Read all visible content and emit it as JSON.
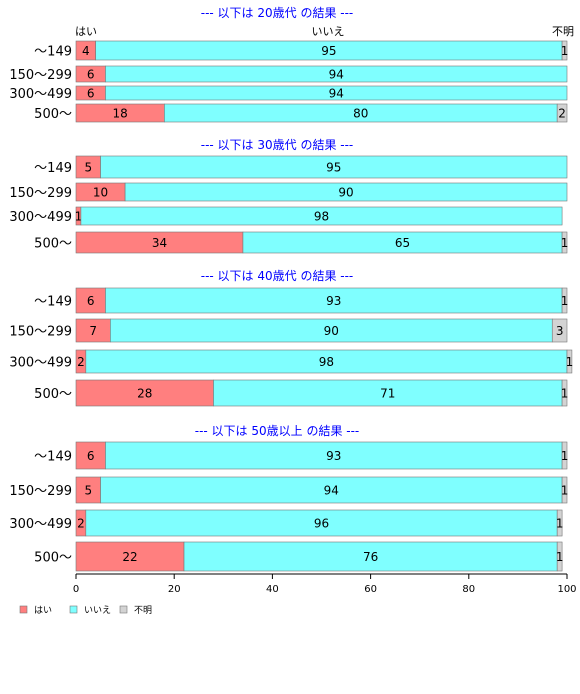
{
  "chart_data": {
    "type": "bar",
    "orientation": "horizontal",
    "stacked": true,
    "xlim": [
      0,
      100
    ],
    "xticks": [
      0,
      20,
      40,
      60,
      80,
      100
    ],
    "column_headers": [
      "はい",
      "いいえ",
      "不明"
    ],
    "legend": {
      "position": "bottom-left",
      "items": [
        {
          "name": "はい",
          "color": "#ff7f7f"
        },
        {
          "name": "いいえ",
          "color": "#7fffff"
        },
        {
          "name": "不明",
          "color": "#d3d3d3"
        }
      ]
    },
    "panels": [
      {
        "title": "--- 以下は 20歳代 の結果 ---",
        "categories": [
          "～149",
          "150～299",
          "300～499",
          "500～"
        ],
        "series": [
          {
            "name": "はい",
            "values": [
              4,
              6,
              6,
              18
            ]
          },
          {
            "name": "いいえ",
            "values": [
              95,
              94,
              94,
              80
            ]
          },
          {
            "name": "不明",
            "values": [
              1,
              0,
              0,
              2
            ]
          }
        ]
      },
      {
        "title": "--- 以下は 30歳代 の結果 ---",
        "categories": [
          "～149",
          "150～299",
          "300～499",
          "500～"
        ],
        "series": [
          {
            "name": "はい",
            "values": [
              5,
              10,
              1,
              34
            ]
          },
          {
            "name": "いいえ",
            "values": [
              95,
              90,
              98,
              65
            ]
          },
          {
            "name": "不明",
            "values": [
              0,
              0,
              0,
              1
            ]
          }
        ]
      },
      {
        "title": "--- 以下は 40歳代 の結果 ---",
        "categories": [
          "～149",
          "150～299",
          "300～499",
          "500～"
        ],
        "series": [
          {
            "name": "はい",
            "values": [
              6,
              7,
              2,
              28
            ]
          },
          {
            "name": "いいえ",
            "values": [
              93,
              90,
              98,
              71
            ]
          },
          {
            "name": "不明",
            "values": [
              1,
              3,
              1,
              1
            ]
          }
        ]
      },
      {
        "title": "--- 以下は 50歳以上 の結果 ---",
        "categories": [
          "～149",
          "150～299",
          "300～499",
          "500～"
        ],
        "series": [
          {
            "name": "はい",
            "values": [
              6,
              5,
              2,
              22
            ]
          },
          {
            "name": "いいえ",
            "values": [
              93,
              94,
              96,
              76
            ]
          },
          {
            "name": "不明",
            "values": [
              1,
              1,
              1,
              1
            ]
          }
        ]
      }
    ]
  }
}
